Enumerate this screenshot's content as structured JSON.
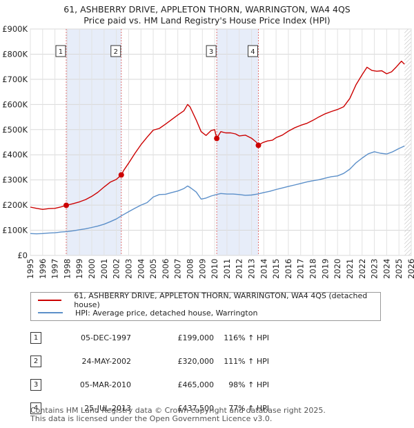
{
  "chart_data": {
    "type": "line",
    "title": "61, ASHBERRY DRIVE, APPLETON THORN, WARRINGTON, WA4 4QS",
    "subtitle": "Price paid vs. HM Land Registry's House Price Index (HPI)",
    "xlim": [
      1995,
      2026
    ],
    "ylim": [
      0,
      900000
    ],
    "x_ticks": [
      "1995",
      "1996",
      "1997",
      "1998",
      "1999",
      "2000",
      "2001",
      "2002",
      "2003",
      "2004",
      "2005",
      "2006",
      "2007",
      "2008",
      "2009",
      "2010",
      "2011",
      "2012",
      "2013",
      "2014",
      "2015",
      "2016",
      "2017",
      "2018",
      "2019",
      "2020",
      "2021",
      "2022",
      "2023",
      "2024",
      "2025",
      "2026"
    ],
    "y_ticks": [
      {
        "value": 0,
        "label": "£0"
      },
      {
        "value": 100000,
        "label": "£100K"
      },
      {
        "value": 200000,
        "label": "£200K"
      },
      {
        "value": 300000,
        "label": "£300K"
      },
      {
        "value": 400000,
        "label": "£400K"
      },
      {
        "value": 500000,
        "label": "£500K"
      },
      {
        "value": 600000,
        "label": "£600K"
      },
      {
        "value": 700000,
        "label": "£700K"
      },
      {
        "value": 800000,
        "label": "£800K"
      },
      {
        "value": 900000,
        "label": "£900K"
      }
    ],
    "series": [
      {
        "name": "61, ASHBERRY DRIVE, APPLETON THORN, WARRINGTON, WA4 4QS (detached house)",
        "color": "#cc0000",
        "x": [
          1995.0,
          1995.5,
          1996.0,
          1996.5,
          1997.0,
          1997.5,
          1997.92,
          1998.5,
          1999.0,
          1999.5,
          2000.0,
          2000.5,
          2001.0,
          2001.5,
          2002.0,
          2002.4,
          2002.6,
          2003.0,
          2003.5,
          2004.0,
          2004.5,
          2005.0,
          2005.5,
          2006.0,
          2006.5,
          2007.0,
          2007.5,
          2007.8,
          2008.0,
          2008.5,
          2008.9,
          2009.3,
          2009.7,
          2010.0,
          2010.17,
          2010.5,
          2010.9,
          2011.3,
          2011.7,
          2012.0,
          2012.5,
          2013.0,
          2013.4,
          2013.56,
          2013.9,
          2014.3,
          2014.7,
          2015.0,
          2015.5,
          2016.0,
          2016.5,
          2017.0,
          2017.5,
          2018.0,
          2018.5,
          2019.0,
          2019.5,
          2020.0,
          2020.5,
          2021.0,
          2021.5,
          2022.0,
          2022.4,
          2022.8,
          2023.2,
          2023.6,
          2024.0,
          2024.4,
          2024.8,
          2025.2,
          2025.45
        ],
        "values": [
          192000,
          187000,
          183000,
          186000,
          187000,
          193000,
          199000,
          206000,
          213000,
          222000,
          235000,
          251000,
          272000,
          291000,
          302000,
          320000,
          338000,
          367000,
          405000,
          440000,
          470000,
          498000,
          505000,
          522000,
          540000,
          558000,
          575000,
          600000,
          590000,
          538000,
          492000,
          477000,
          496000,
          500000,
          465000,
          492000,
          487000,
          487000,
          483000,
          475000,
          478000,
          466000,
          450000,
          437500,
          448000,
          455000,
          458000,
          468000,
          478000,
          494000,
          507000,
          517000,
          525000,
          537000,
          551000,
          563000,
          572000,
          580000,
          591000,
          624000,
          678000,
          718000,
          748000,
          735000,
          732000,
          734000,
          722000,
          730000,
          750000,
          772000,
          760000
        ]
      },
      {
        "name": "HPI: Average price, detached house, Warrington",
        "color": "#5b8fc9",
        "x": [
          1995.0,
          1995.5,
          1996.0,
          1996.5,
          1997.0,
          1997.5,
          1998.0,
          1998.5,
          1999.0,
          1999.5,
          2000.0,
          2000.5,
          2001.0,
          2001.5,
          2002.0,
          2002.5,
          2003.0,
          2003.5,
          2004.0,
          2004.5,
          2005.0,
          2005.5,
          2006.0,
          2006.5,
          2007.0,
          2007.5,
          2007.8,
          2008.0,
          2008.5,
          2008.9,
          2009.3,
          2009.7,
          2010.0,
          2010.5,
          2011.0,
          2011.5,
          2012.0,
          2012.5,
          2013.0,
          2013.5,
          2014.0,
          2014.5,
          2015.0,
          2015.5,
          2016.0,
          2016.5,
          2017.0,
          2017.5,
          2018.0,
          2018.5,
          2019.0,
          2019.5,
          2020.0,
          2020.5,
          2021.0,
          2021.5,
          2022.0,
          2022.5,
          2023.0,
          2023.5,
          2024.0,
          2024.5,
          2025.0,
          2025.45
        ],
        "values": [
          87000,
          86000,
          87000,
          89000,
          90000,
          93000,
          95000,
          98000,
          102000,
          106000,
          111000,
          117000,
          124000,
          134000,
          145000,
          160000,
          174000,
          187000,
          200000,
          210000,
          232000,
          242000,
          243000,
          250000,
          256000,
          266000,
          276000,
          270000,
          252000,
          224000,
          228000,
          236000,
          240000,
          246000,
          244000,
          244000,
          242000,
          239000,
          240000,
          244000,
          250000,
          255000,
          262000,
          268000,
          274000,
          280000,
          286000,
          292000,
          297000,
          301000,
          307000,
          313000,
          316000,
          326000,
          343000,
          368000,
          387000,
          404000,
          412000,
          406000,
          403000,
          412000,
          425000,
          435000
        ]
      }
    ],
    "transactions": [
      {
        "num": "1",
        "date": "05-DEC-1997",
        "x": 1997.92,
        "price_value": 199000,
        "price": "£199,000",
        "hpi": "116% ↑ HPI"
      },
      {
        "num": "2",
        "date": "24-MAY-2002",
        "x": 2002.4,
        "price_value": 320000,
        "price": "£320,000",
        "hpi": "111% ↑ HPI"
      },
      {
        "num": "3",
        "date": "05-MAR-2010",
        "x": 2010.17,
        "price_value": 465000,
        "price": "£465,000",
        "hpi": "98% ↑ HPI"
      },
      {
        "num": "4",
        "date": "25-JUL-2013",
        "x": 2013.56,
        "price_value": 437500,
        "price": "£437,500",
        "hpi": "77% ↑ HPI"
      }
    ],
    "shaded_ranges": [
      [
        1997.92,
        2002.4
      ],
      [
        2010.17,
        2013.56
      ]
    ],
    "future_from": 2025.45
  },
  "legend": {
    "property_label": "61, ASHBERRY DRIVE, APPLETON THORN, WARRINGTON, WA4 4QS (detached house)",
    "hpi_label": "HPI: Average price, detached house, Warrington"
  },
  "footer": {
    "line1": "Contains HM Land Registry data © Crown copyright and database right 2025.",
    "line2": "This data is licensed under the Open Government Licence v3.0."
  }
}
